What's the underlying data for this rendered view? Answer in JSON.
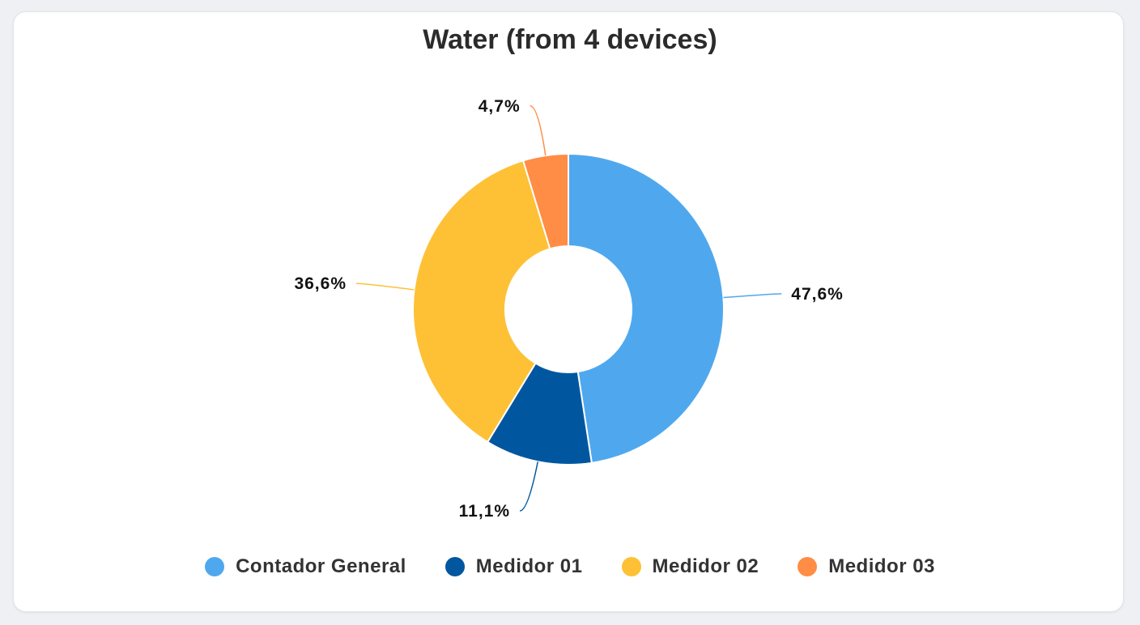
{
  "chart_data": {
    "type": "pie",
    "variant": "donut",
    "title": "Water (from 4 devices)",
    "series": [
      {
        "name": "Contador General",
        "value": 47.6,
        "label": "47,6%",
        "color": "#4fa8ee"
      },
      {
        "name": "Medidor 01",
        "value": 11.1,
        "label": "11,1%",
        "color": "#0057a0"
      },
      {
        "name": "Medidor 02",
        "value": 36.6,
        "label": "36,6%",
        "color": "#fec135"
      },
      {
        "name": "Medidor 03",
        "value": 4.7,
        "label": "4,7%",
        "color": "#ff8d45"
      }
    ],
    "legend_position": "bottom",
    "start_angle": "top, clockwise"
  }
}
